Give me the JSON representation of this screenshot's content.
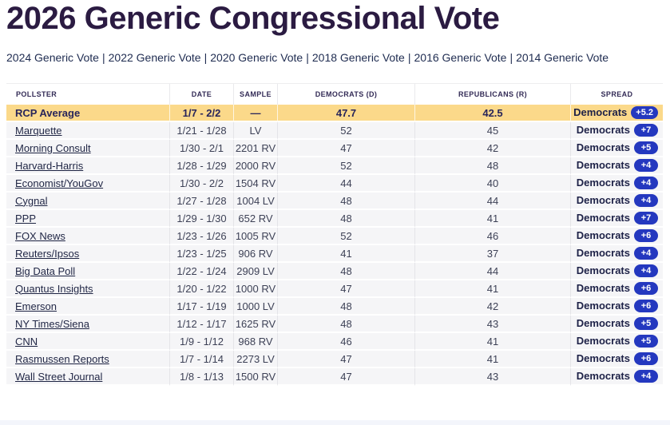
{
  "page": {
    "title": "2026 Generic Congressional Vote"
  },
  "nav": {
    "separator": "|",
    "links": [
      "2024 Generic Vote",
      "2022 Generic Vote",
      "2020 Generic Vote",
      "2018 Generic Vote",
      "2016 Generic Vote",
      "2014 Generic Vote"
    ]
  },
  "colors": {
    "title": "#2b1b42",
    "highlight_row": "#fbd98a",
    "badge_blue": "#2438bf",
    "row_bg": "#f5f5f7"
  },
  "table": {
    "columns": [
      "POLLSTER",
      "DATE",
      "SAMPLE",
      "DEMOCRATS (D)",
      "REPUBLICANS (R)",
      "SPREAD"
    ],
    "average_row": {
      "pollster": "RCP Average",
      "date": "1/7 - 2/2",
      "sample": "—",
      "dem": "47.7",
      "rep": "42.5",
      "spread_party": "Democrats",
      "spread_value": "+5.2"
    },
    "rows": [
      {
        "pollster": "Marquette",
        "date": "1/21 - 1/28",
        "sample": "LV",
        "dem": "52",
        "rep": "45",
        "spread_party": "Democrats",
        "spread_value": "+7"
      },
      {
        "pollster": "Morning Consult",
        "date": "1/30 - 2/1",
        "sample": "2201 RV",
        "dem": "47",
        "rep": "42",
        "spread_party": "Democrats",
        "spread_value": "+5"
      },
      {
        "pollster": "Harvard-Harris",
        "date": "1/28 - 1/29",
        "sample": "2000 RV",
        "dem": "52",
        "rep": "48",
        "spread_party": "Democrats",
        "spread_value": "+4"
      },
      {
        "pollster": "Economist/YouGov",
        "date": "1/30 - 2/2",
        "sample": "1504 RV",
        "dem": "44",
        "rep": "40",
        "spread_party": "Democrats",
        "spread_value": "+4"
      },
      {
        "pollster": "Cygnal",
        "date": "1/27 - 1/28",
        "sample": "1004 LV",
        "dem": "48",
        "rep": "44",
        "spread_party": "Democrats",
        "spread_value": "+4"
      },
      {
        "pollster": "PPP",
        "date": "1/29 - 1/30",
        "sample": "652 RV",
        "dem": "48",
        "rep": "41",
        "spread_party": "Democrats",
        "spread_value": "+7"
      },
      {
        "pollster": "FOX News",
        "date": "1/23 - 1/26",
        "sample": "1005 RV",
        "dem": "52",
        "rep": "46",
        "spread_party": "Democrats",
        "spread_value": "+6"
      },
      {
        "pollster": "Reuters/Ipsos",
        "date": "1/23 - 1/25",
        "sample": "906 RV",
        "dem": "41",
        "rep": "37",
        "spread_party": "Democrats",
        "spread_value": "+4"
      },
      {
        "pollster": "Big Data Poll",
        "date": "1/22 - 1/24",
        "sample": "2909 LV",
        "dem": "48",
        "rep": "44",
        "spread_party": "Democrats",
        "spread_value": "+4"
      },
      {
        "pollster": "Quantus Insights",
        "date": "1/20 - 1/22",
        "sample": "1000 RV",
        "dem": "47",
        "rep": "41",
        "spread_party": "Democrats",
        "spread_value": "+6"
      },
      {
        "pollster": "Emerson",
        "date": "1/17 - 1/19",
        "sample": "1000 LV",
        "dem": "48",
        "rep": "42",
        "spread_party": "Democrats",
        "spread_value": "+6"
      },
      {
        "pollster": "NY Times/Siena",
        "date": "1/12 - 1/17",
        "sample": "1625 RV",
        "dem": "48",
        "rep": "43",
        "spread_party": "Democrats",
        "spread_value": "+5"
      },
      {
        "pollster": "CNN",
        "date": "1/9 - 1/12",
        "sample": "968 RV",
        "dem": "46",
        "rep": "41",
        "spread_party": "Democrats",
        "spread_value": "+5"
      },
      {
        "pollster": "Rasmussen Reports",
        "date": "1/7 - 1/14",
        "sample": "2273 LV",
        "dem": "47",
        "rep": "41",
        "spread_party": "Democrats",
        "spread_value": "+6"
      },
      {
        "pollster": "Wall Street Journal",
        "date": "1/8 - 1/13",
        "sample": "1500 RV",
        "dem": "47",
        "rep": "43",
        "spread_party": "Democrats",
        "spread_value": "+4"
      }
    ]
  }
}
